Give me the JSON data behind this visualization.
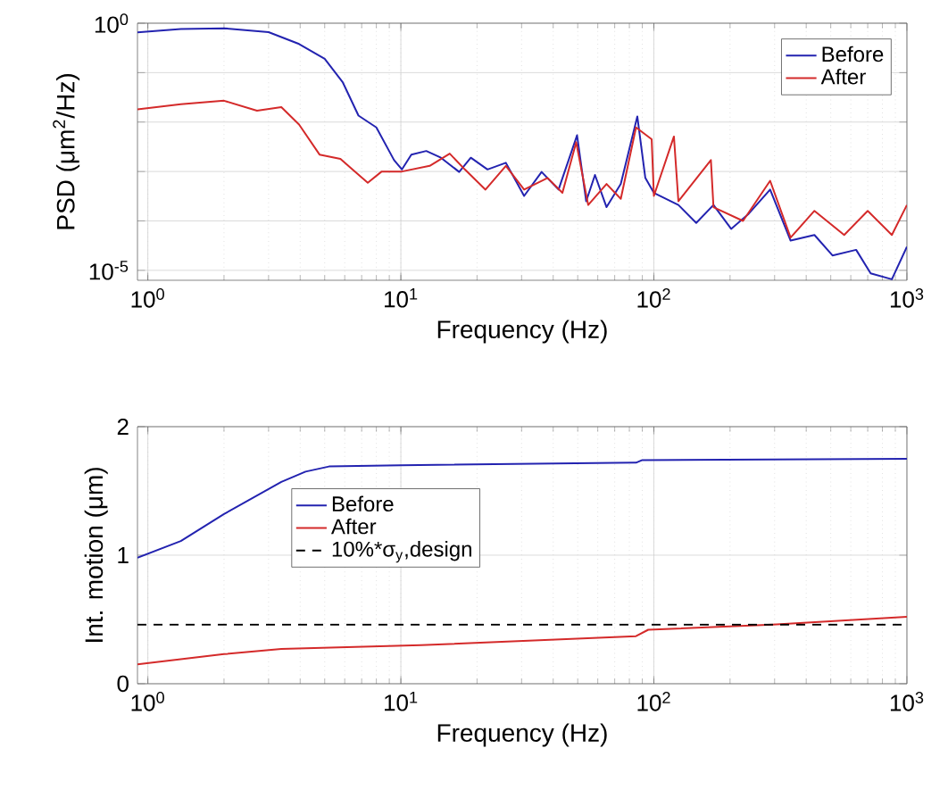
{
  "chart_data": [
    {
      "type": "line",
      "log": "xy",
      "xlabel": "Frequency (Hz)",
      "ylabel": "PSD (μm$^{2}$/Hz)",
      "grid": true,
      "legend": "top right",
      "xlim": [
        0.91,
        1000
      ],
      "ylim": [
        6.3e-06,
        1
      ],
      "xticks": [
        {
          "value": 1,
          "label": "10$^{0}$"
        },
        {
          "value": 10,
          "label": "10$^{1}$"
        },
        {
          "value": 100,
          "label": "10$^{2}$"
        },
        {
          "value": 1000,
          "label": "10$^{3}$"
        }
      ],
      "yticks": [
        {
          "value": 1e-05,
          "label": "10$^{-5}$"
        },
        {
          "value": 0.0001,
          "label": null
        },
        {
          "value": 0.001,
          "label": null
        },
        {
          "value": 0.01,
          "label": null
        },
        {
          "value": 0.1,
          "label": null
        },
        {
          "value": 1,
          "label": "10$^{0}$"
        }
      ],
      "series": [
        {
          "name": "Before",
          "color": "#2323b0",
          "x": [
            0.91,
            1.35,
            2,
            3,
            3.96,
            5,
            5.9,
            6.8,
            8,
            9.4,
            10.1,
            11,
            12.6,
            14.4,
            17,
            18.9,
            22,
            26,
            30.7,
            36,
            42,
            49.7,
            54,
            58.5,
            65,
            74,
            86,
            92.5,
            100,
            125,
            147,
            172,
            202,
            237,
            288,
            347,
            431,
            508,
            630,
            719,
            872,
            1000
          ],
          "values": [
            0.65,
            0.76,
            0.79,
            0.66,
            0.38,
            0.19,
            0.063,
            0.0135,
            0.0078,
            0.0017,
            0.0011,
            0.0022,
            0.0026,
            0.0019,
            0.00098,
            0.0019,
            0.0011,
            0.0015,
            0.00032,
            0.00098,
            0.00043,
            0.0054,
            0.00025,
            0.00085,
            0.00019,
            0.00056,
            0.013,
            0.00074,
            0.00037,
            0.00021,
            9.1e-05,
            0.00021,
            6.9e-05,
            0.00014,
            0.00043,
            4e-05,
            5.2e-05,
            2e-05,
            2.6e-05,
            8.7e-06,
            6.6e-06,
            3e-05
          ]
        },
        {
          "name": "After",
          "color": "#d42a2a",
          "x": [
            0.91,
            1.35,
            2,
            2.7,
            3.37,
            3.96,
            4.77,
            5.77,
            6.6,
            7.4,
            8.4,
            10.1,
            13,
            15.6,
            17.9,
            21.6,
            26,
            30.7,
            38,
            43.5,
            49.3,
            55,
            65,
            74,
            85,
            98,
            100,
            120,
            125,
            168,
            172,
            225,
            288,
            347,
            431,
            565,
            700,
            872,
            1000
          ],
          "values": [
            0.018,
            0.023,
            0.027,
            0.017,
            0.02,
            0.0089,
            0.0022,
            0.0018,
            0.00098,
            0.00059,
            0.001,
            0.001,
            0.0013,
            0.0023,
            0.0011,
            0.00043,
            0.0013,
            0.00043,
            0.00074,
            0.00037,
            0.0039,
            0.00021,
            0.00056,
            0.00028,
            0.0078,
            0.0045,
            0.00032,
            0.0051,
            0.00025,
            0.0017,
            0.00019,
            0.0001,
            0.00065,
            4.6e-05,
            0.00016,
            5.2e-05,
            0.00016,
            5.2e-05,
            0.00021
          ]
        }
      ]
    },
    {
      "type": "line",
      "log": "x",
      "xlabel": "Frequency (Hz)",
      "ylabel": "Int. motion (μm)",
      "grid": true,
      "legend": "left",
      "xlim": [
        0.91,
        1000
      ],
      "ylim": [
        0,
        2
      ],
      "xticks": [
        {
          "value": 1,
          "label": "10$^{0}$"
        },
        {
          "value": 10,
          "label": "10$^{1}$"
        },
        {
          "value": 100,
          "label": "10$^{2}$"
        },
        {
          "value": 1000,
          "label": "10$^{3}$"
        }
      ],
      "yticks": [
        0,
        1,
        2
      ],
      "series": [
        {
          "name": "Before",
          "color": "#2323b0",
          "x": [
            0.91,
            1.35,
            2,
            3.37,
            4.2,
            5.2,
            10,
            85,
            90,
            1000
          ],
          "values": [
            0.98,
            1.11,
            1.32,
            1.57,
            1.65,
            1.69,
            1.7,
            1.72,
            1.74,
            1.75
          ]
        },
        {
          "name": "After",
          "color": "#d42a2a",
          "x": [
            0.91,
            2,
            3.37,
            12,
            85,
            95,
            295,
            1000
          ],
          "values": [
            0.15,
            0.23,
            0.27,
            0.3,
            0.37,
            0.42,
            0.46,
            0.52
          ]
        }
      ],
      "ref_lines": [
        {
          "axis": "y",
          "value": 0.46,
          "label": "10%*σ$_{y}$,design",
          "color": "#000000",
          "line_style": "dashed"
        }
      ]
    }
  ]
}
